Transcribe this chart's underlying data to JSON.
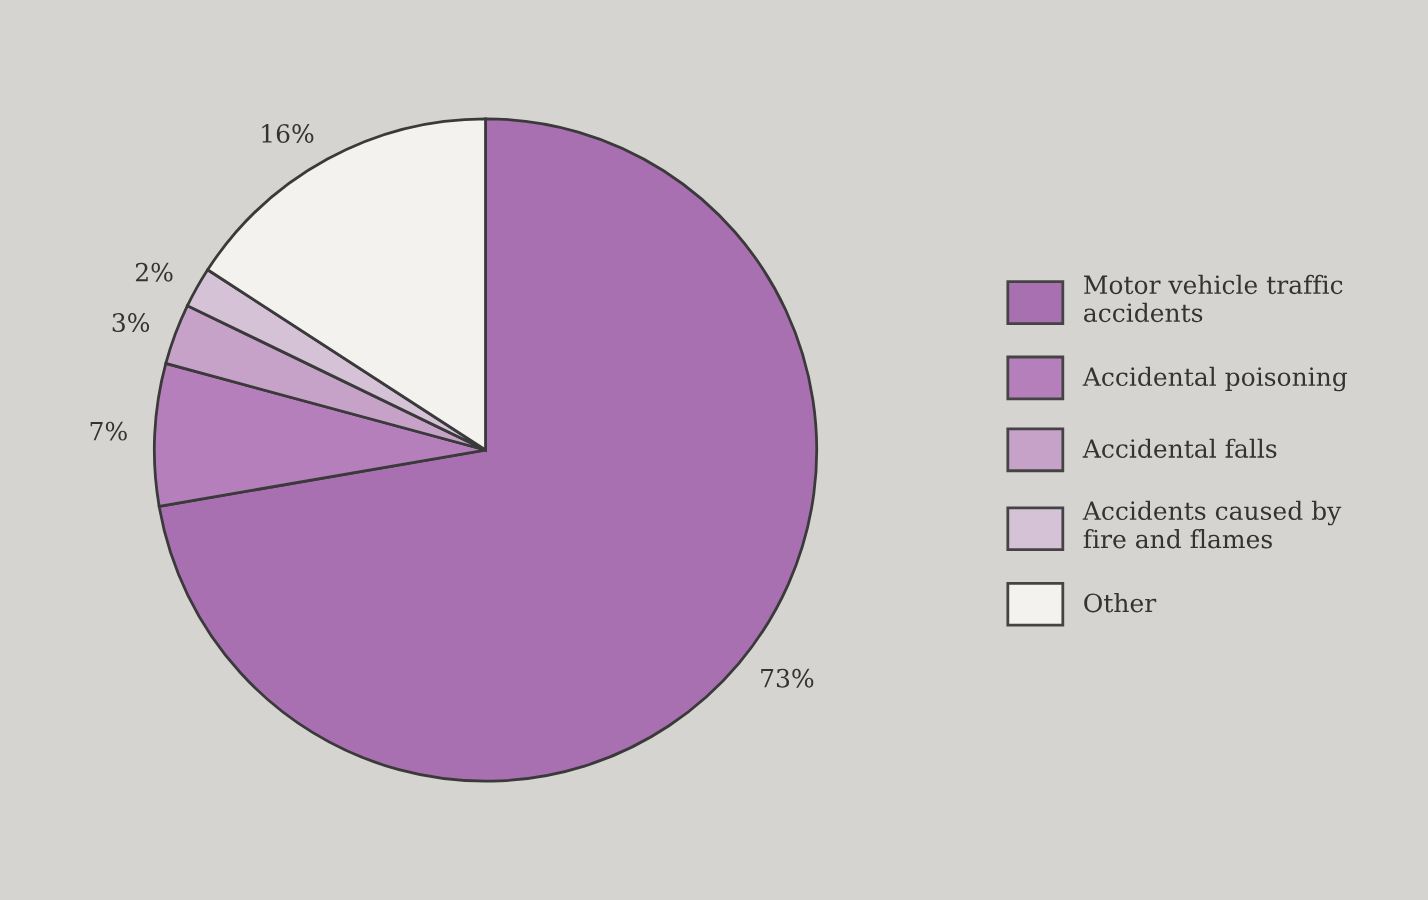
{
  "chart_data": {
    "type": "pie",
    "categories": [
      "Motor vehicle traffic accidents",
      "Accidental poisoning",
      "Accidental falls",
      "Accidents caused by fire and flames",
      "Other"
    ],
    "values": [
      73,
      7,
      3,
      2,
      16
    ],
    "value_labels": [
      "73%",
      "7%",
      "3%",
      "2%",
      "16%"
    ],
    "colors": [
      "#a970b1",
      "#b47fbb",
      "#c6a2c9",
      "#d6c2d7",
      "#f4f2ef"
    ],
    "legend": "right"
  }
}
